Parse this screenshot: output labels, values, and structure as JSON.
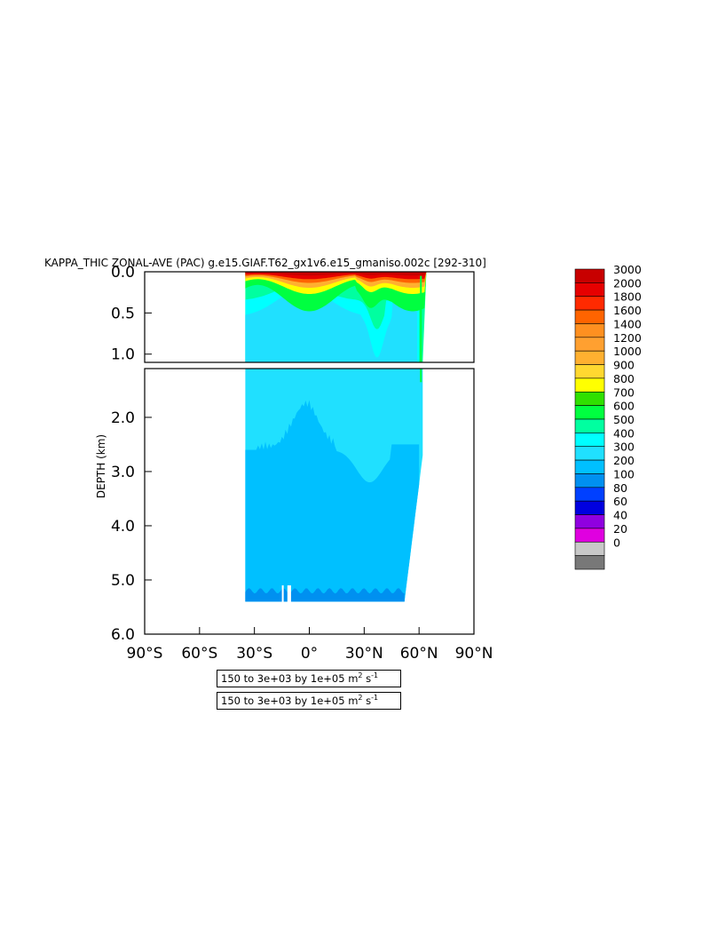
{
  "chart_data": {
    "type": "heatmap",
    "title": "KAPPA_THIC ZONAL-AVE (PAC) g.e15.GIAF.T62_gx1v6.e15_gmaniso.002c [292-310]",
    "ylabel": "DEPTH (km)",
    "xlabel": "",
    "x_ticks": [
      "90°S",
      "60°S",
      "30°S",
      "0°",
      "30°N",
      "60°N",
      "90°N"
    ],
    "x_tick_values": [
      -90,
      -60,
      -30,
      0,
      30,
      60,
      90
    ],
    "xlim": [
      -90,
      90
    ],
    "upper_panel": {
      "ylim": [
        0.0,
        1.1
      ],
      "y_ticks": [
        "0.0",
        "0.5",
        "1.0"
      ],
      "y_tick_values": [
        0.0,
        0.5,
        1.0
      ]
    },
    "lower_panel": {
      "ylim": [
        1.1,
        6.0
      ],
      "y_ticks": [
        "2.0",
        "3.0",
        "4.0",
        "5.0",
        "6.0"
      ],
      "y_tick_values": [
        2.0,
        3.0,
        4.0,
        5.0,
        6.0
      ]
    },
    "colorbar": {
      "levels": [
        "3000",
        "2000",
        "1800",
        "1600",
        "1400",
        "1200",
        "1000",
        "900",
        "800",
        "700",
        "600",
        "500",
        "400",
        "300",
        "200",
        "100",
        "80",
        "60",
        "40",
        "20",
        "0"
      ],
      "colors": [
        "#c80000",
        "#e60000",
        "#ff2a00",
        "#ff6400",
        "#ff9020",
        "#ffa030",
        "#ffb030",
        "#ffd830",
        "#ffff00",
        "#30e000",
        "#00ff40",
        "#00ffa0",
        "#00ffff",
        "#20e0ff",
        "#00c0ff",
        "#0090f0",
        "#0040ff",
        "#0000e0",
        "#9000e0",
        "#e000e0",
        "#c8c8c8",
        "#787878"
      ]
    },
    "data_extent": {
      "lat_range": [
        -35,
        62
      ],
      "max_depth_km": 5.4,
      "zones": [
        {
          "value_range": "1000-3000",
          "depth_km": [
            0.0,
            0.08
          ],
          "lat": [
            -35,
            62
          ]
        },
        {
          "value_range": "400-500",
          "depth_km": [
            0.1,
            1.1
          ],
          "lat": [
            -35,
            62
          ]
        },
        {
          "value_range": "300-400",
          "depth_km": [
            0.3,
            3.2
          ],
          "lat": [
            -35,
            62
          ]
        },
        {
          "value_range": "200-300",
          "depth_km": [
            2.5,
            5.3
          ],
          "lat": [
            -35,
            55
          ]
        },
        {
          "value_range": "100-200",
          "depth_km": [
            5.2,
            5.4
          ],
          "lat": [
            -35,
            52
          ]
        }
      ]
    }
  },
  "info_boxes": [
    {
      "text": "150 to 3e+03 by 1e+05 m",
      "sup1": "2",
      "mid": " s",
      "sup2": "-1"
    },
    {
      "text": "150 to 3e+03 by 1e+05 m",
      "sup1": "2",
      "mid": " s",
      "sup2": "-1"
    }
  ]
}
